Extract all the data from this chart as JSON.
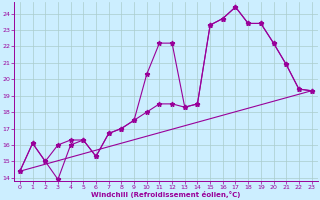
{
  "xlabel": "Windchill (Refroidissement éolien,°C)",
  "bg_color": "#cceeff",
  "grid_color": "#aacccc",
  "line_color": "#990099",
  "xlim": [
    -0.5,
    23.5
  ],
  "ylim": [
    13.8,
    24.7
  ],
  "yticks": [
    14,
    15,
    16,
    17,
    18,
    19,
    20,
    21,
    22,
    23,
    24
  ],
  "xticks": [
    0,
    1,
    2,
    3,
    4,
    5,
    6,
    7,
    8,
    9,
    10,
    11,
    12,
    13,
    14,
    15,
    16,
    17,
    18,
    19,
    20,
    21,
    22,
    23
  ],
  "line1_x": [
    0,
    1,
    2,
    3,
    4,
    5,
    6,
    7,
    8,
    9,
    10,
    11,
    12,
    13,
    14,
    15,
    16,
    17,
    18,
    19,
    20,
    21,
    22,
    23
  ],
  "line1_y": [
    14.4,
    16.1,
    15.0,
    13.9,
    16.0,
    16.3,
    15.3,
    16.7,
    17.0,
    17.5,
    20.3,
    22.2,
    22.2,
    18.3,
    18.5,
    23.3,
    23.7,
    24.4,
    23.4,
    23.4,
    22.2,
    20.9,
    19.4,
    19.3
  ],
  "line2_x": [
    0,
    1,
    2,
    3,
    4,
    5,
    6,
    7,
    8,
    9,
    10,
    11,
    12,
    13,
    14,
    15,
    16,
    17,
    18,
    19,
    20,
    21,
    22,
    23
  ],
  "line2_y": [
    14.4,
    16.1,
    15.0,
    16.0,
    16.3,
    16.3,
    15.3,
    16.7,
    17.0,
    17.5,
    18.0,
    18.5,
    18.5,
    18.3,
    18.5,
    23.3,
    23.7,
    24.4,
    23.4,
    23.4,
    22.2,
    20.9,
    19.4,
    19.3
  ],
  "line3_x": [
    0,
    23
  ],
  "line3_y": [
    14.4,
    19.3
  ]
}
